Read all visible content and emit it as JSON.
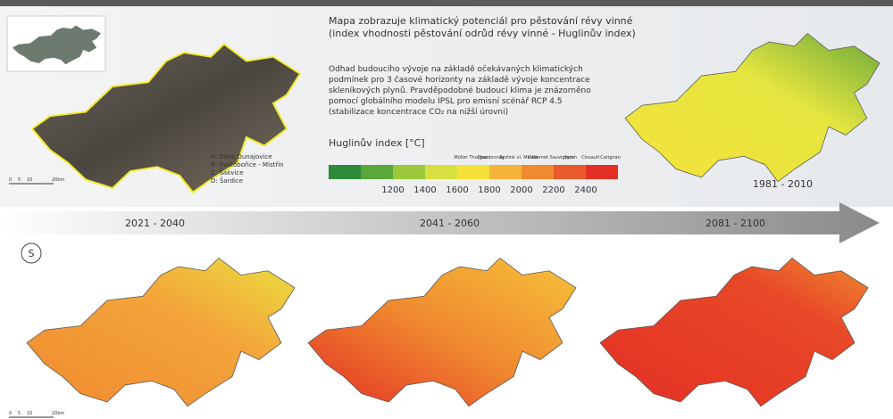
{
  "description": {
    "title_lines": [
      "Mapa zobrazuje klimatický potenciál pro pěstování révy vinné",
      "(index vhodnosti pěstování odrůd révy vinné - Huglinův index)"
    ],
    "paragraph_lines": [
      "Odhad budoucího vývoje na základě očekávaných klimatických",
      "podmínek pro 3 časové horizonty na základě vývoje koncentrace",
      "skleníkových plynů. Pravděpodobné budoucí klima je znázorněno",
      "pomocí globálního modelu IPSL pro emisní scénář RCP 4.5",
      "(stabilizace koncentrace CO₂ na nižší úrovni)"
    ]
  },
  "legend": {
    "title": "Huglinův index [°C]",
    "varieties": [
      "Müller Thurgau",
      "Chardonnay",
      "Ryzlink vl.",
      "Merlot",
      "Cabernet Sauvignon",
      "Syrah",
      "Cinsault",
      "Carignan"
    ],
    "colors": [
      "#2e8b3a",
      "#5aa83a",
      "#9cc83c",
      "#d8e040",
      "#f4e23a",
      "#f7b43a",
      "#f08a30",
      "#ea5a2c",
      "#e43024"
    ],
    "ticks": [
      "1200",
      "1400",
      "1600",
      "1800",
      "2000",
      "2200",
      "2400"
    ]
  },
  "sites": [
    "A: Dolní Dunajovice",
    "B: Svatobořice - Mistřín",
    "C: Šakvice",
    "D: Šardice"
  ],
  "scale": [
    "0",
    "5",
    "10",
    "20km"
  ],
  "periods": [
    "1981 - 2010",
    "2021 - 2040",
    "2041 - 2060",
    "2081 - 2100"
  ],
  "compass": "S"
}
